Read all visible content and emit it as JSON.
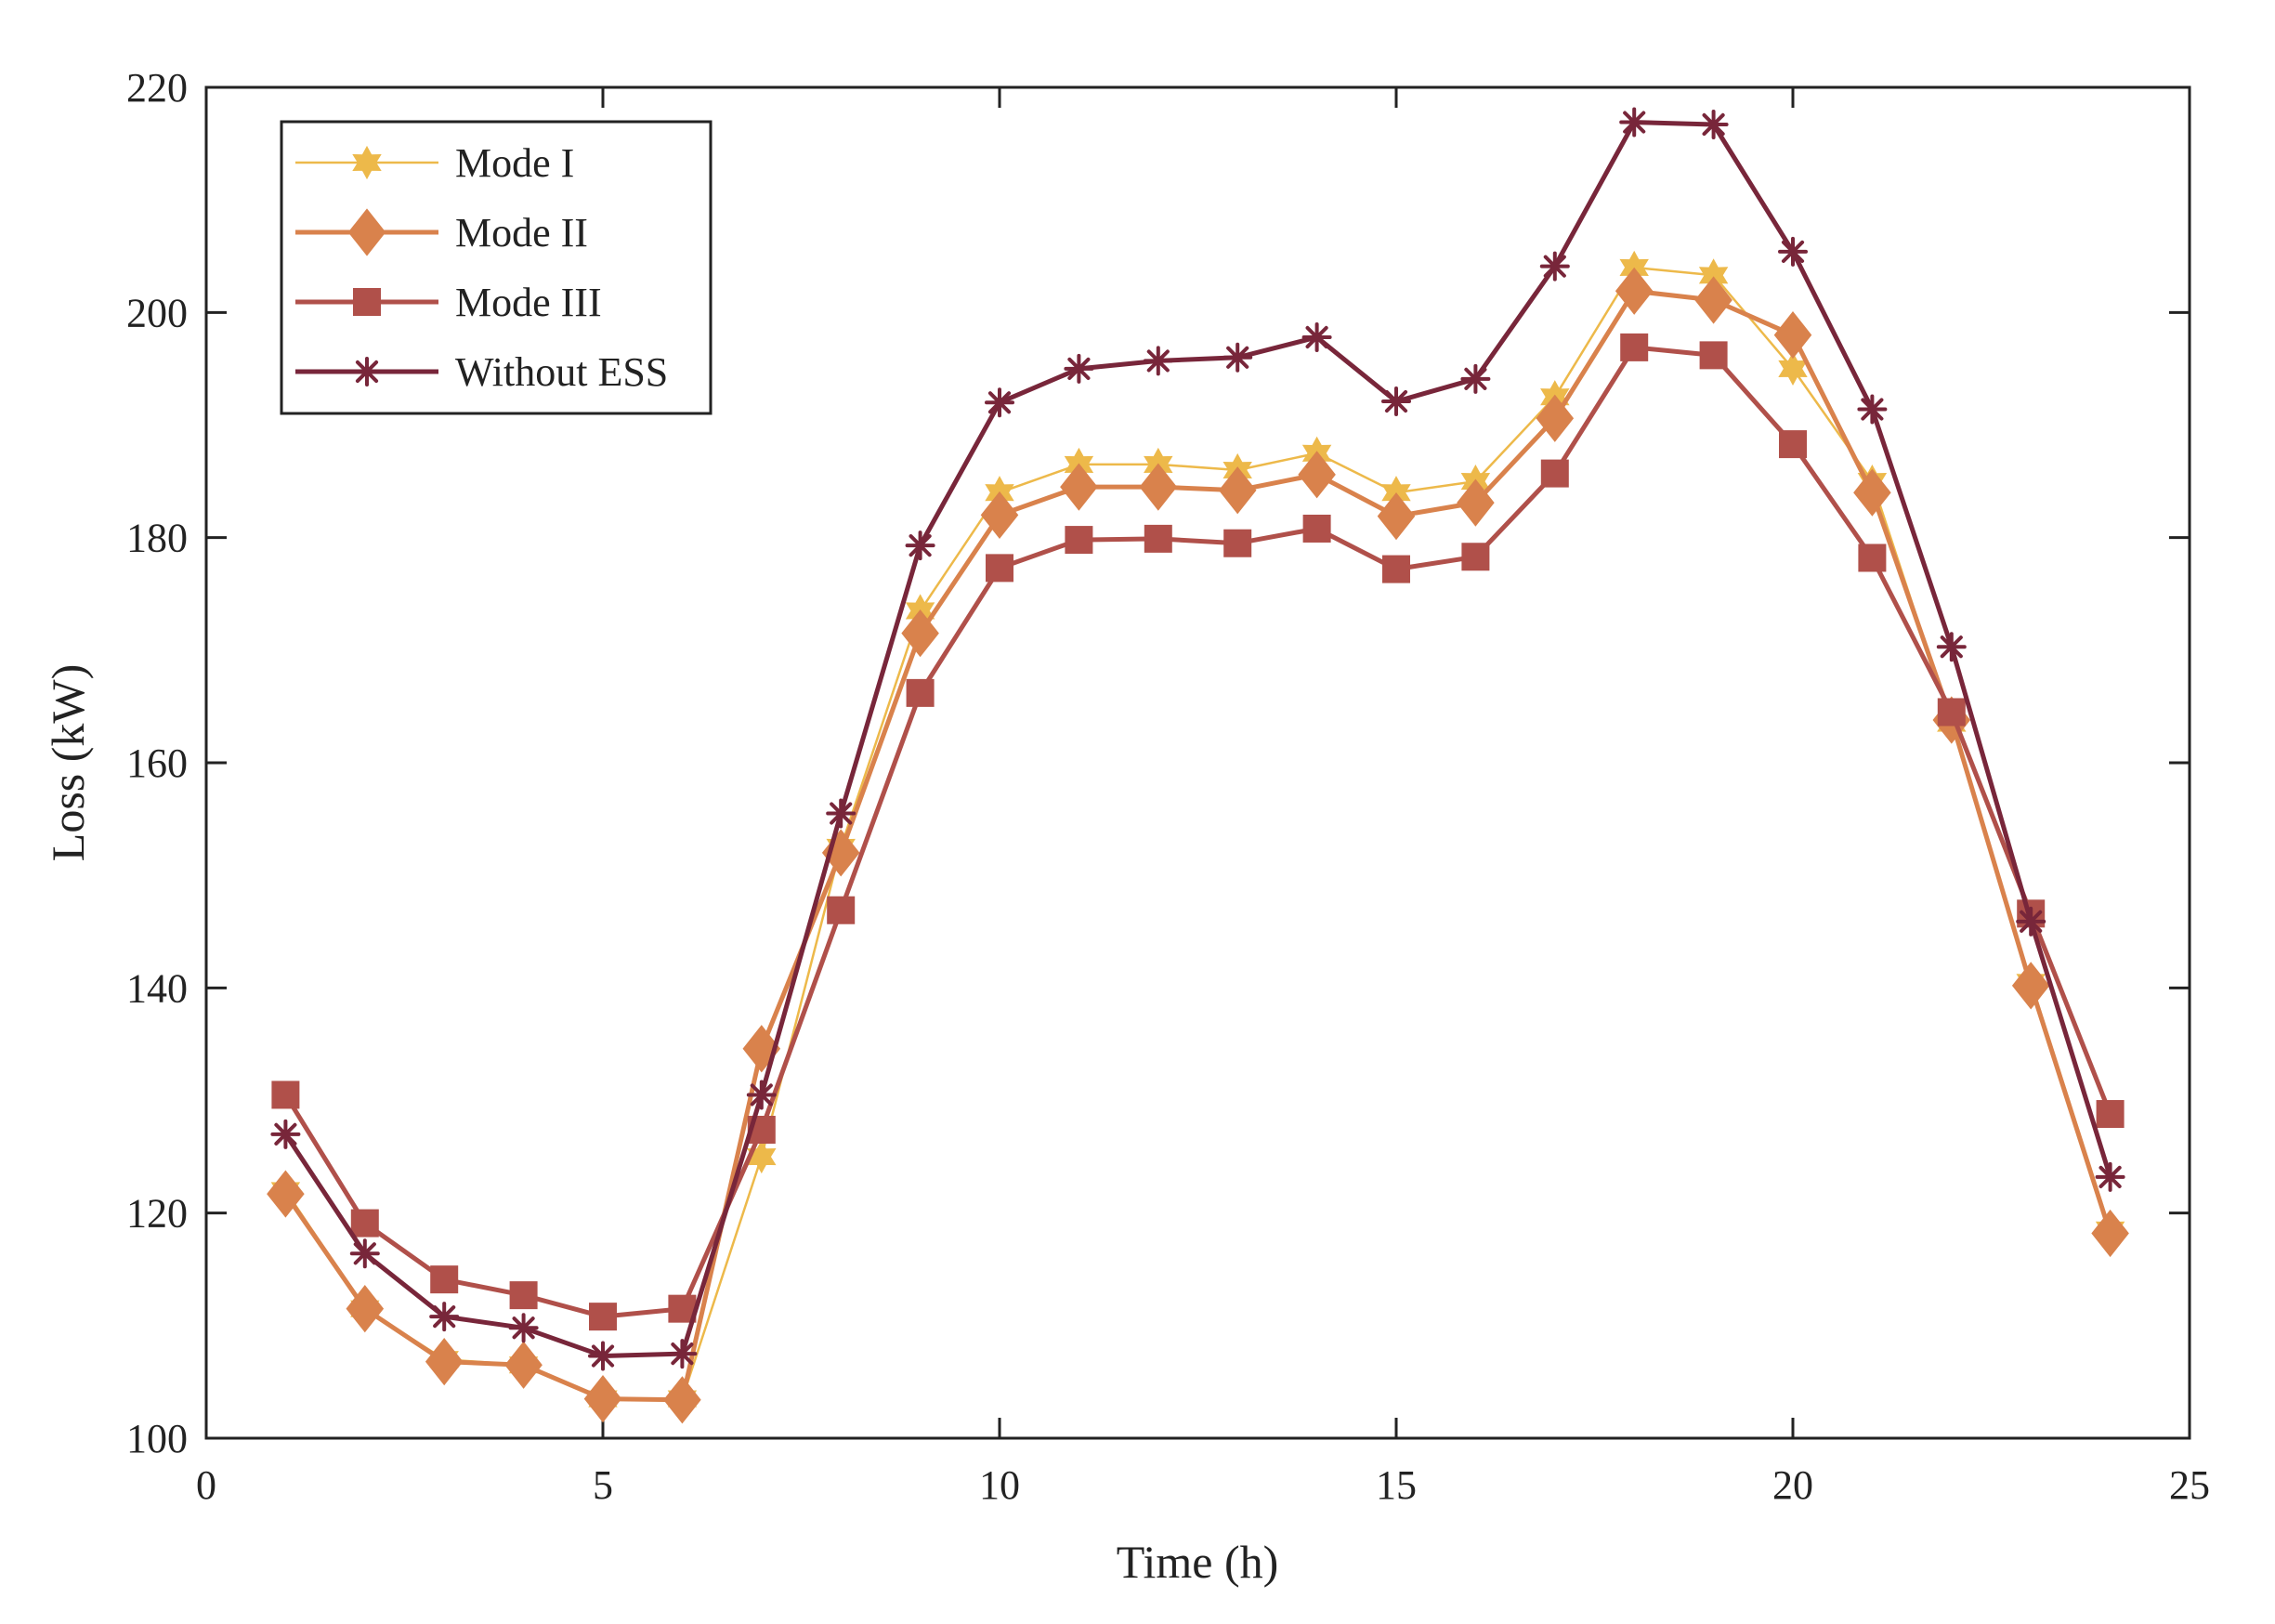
{
  "chart_data": {
    "type": "line",
    "title": "",
    "xlabel": "Time (h)",
    "ylabel": "Loss (kW)",
    "xlim": [
      0,
      25
    ],
    "ylim": [
      100,
      220
    ],
    "xticks": [
      0,
      5,
      10,
      15,
      20,
      25
    ],
    "yticks": [
      100,
      120,
      140,
      160,
      180,
      200,
      220
    ],
    "grid": false,
    "legend_position": "top-left",
    "x": [
      1,
      2,
      3,
      4,
      5,
      6,
      7,
      8,
      9,
      10,
      11,
      12,
      13,
      14,
      15,
      16,
      17,
      18,
      19,
      20,
      21,
      22,
      23,
      24
    ],
    "series": [
      {
        "name": "Mode I",
        "color": "#EDB94A",
        "marker": "hexagram",
        "values": [
          122,
          111.5,
          107,
          106.5,
          103.5,
          103.5,
          125,
          152.5,
          173.5,
          184,
          186.5,
          186.5,
          186,
          187.5,
          184,
          185,
          192.5,
          204,
          203.3,
          195,
          185,
          163.5,
          140.5,
          118.5
        ]
      },
      {
        "name": "Mode II",
        "color": "#D9824C",
        "marker": "diamond",
        "values": [
          121.7,
          111.5,
          106.8,
          106.5,
          103.5,
          103.4,
          134.6,
          152,
          171.5,
          182,
          184.5,
          184.5,
          184.2,
          185.6,
          181.9,
          183.1,
          190.6,
          201.9,
          201.1,
          198,
          184,
          163.8,
          140.2,
          118.2
        ]
      },
      {
        "name": "Mode III",
        "color": "#B0504A",
        "marker": "square",
        "values": [
          130.5,
          119.1,
          114.1,
          112.7,
          110.8,
          111.5,
          127.4,
          146.9,
          166.2,
          177.3,
          179.8,
          179.9,
          179.5,
          180.8,
          177.2,
          178.3,
          185.7,
          196.9,
          196.2,
          188.3,
          178.2,
          164.5,
          146.6,
          128.8
        ]
      },
      {
        "name": "Without ESS",
        "color": "#78263A",
        "marker": "asterisk",
        "values": [
          127,
          116.4,
          110.8,
          109.8,
          107.3,
          107.5,
          130.5,
          155.5,
          179.3,
          192,
          195,
          195.7,
          196,
          197.8,
          192.1,
          194.1,
          204.1,
          216.9,
          216.7,
          205.4,
          191.4,
          170.3,
          145.9,
          123.2
        ]
      }
    ]
  }
}
